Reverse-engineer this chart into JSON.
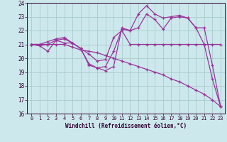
{
  "background_color": "#cce8ec",
  "grid_color": "#aacccc",
  "line_color": "#993399",
  "xlabel": "Windchill (Refroidissement éolien,°C)",
  "xlim": [
    -0.5,
    23.5
  ],
  "ylim": [
    16,
    24
  ],
  "xticks": [
    0,
    1,
    2,
    3,
    4,
    5,
    6,
    7,
    8,
    9,
    10,
    11,
    12,
    13,
    14,
    15,
    16,
    17,
    18,
    19,
    20,
    21,
    22,
    23
  ],
  "yticks": [
    16,
    17,
    18,
    19,
    20,
    21,
    22,
    23,
    24
  ],
  "series": [
    [
      21.0,
      20.9,
      20.5,
      21.3,
      21.1,
      21.1,
      20.7,
      20.3,
      19.8,
      19.9,
      21.5,
      22.0,
      21.0,
      21.0,
      21.0,
      21.0,
      21.0,
      21.0,
      21.0,
      21.0,
      21.0,
      21.0,
      21.0,
      21.0
    ],
    [
      21.0,
      20.9,
      21.0,
      21.3,
      21.4,
      21.1,
      20.7,
      19.6,
      19.3,
      19.1,
      19.4,
      22.2,
      22.0,
      23.2,
      23.8,
      23.2,
      22.9,
      23.0,
      23.1,
      22.9,
      22.2,
      22.2,
      19.5,
      16.5
    ],
    [
      21.0,
      21.0,
      21.2,
      21.4,
      21.5,
      21.1,
      20.7,
      19.5,
      19.3,
      19.4,
      20.5,
      22.1,
      22.0,
      22.2,
      23.2,
      22.8,
      22.1,
      22.9,
      23.0,
      22.9,
      22.2,
      21.0,
      18.5,
      16.5
    ],
    [
      21.0,
      21.0,
      21.0,
      21.0,
      21.0,
      20.8,
      20.6,
      20.5,
      20.4,
      20.2,
      20.0,
      19.8,
      19.6,
      19.4,
      19.2,
      19.0,
      18.8,
      18.5,
      18.3,
      18.0,
      17.7,
      17.4,
      17.0,
      16.5
    ]
  ]
}
